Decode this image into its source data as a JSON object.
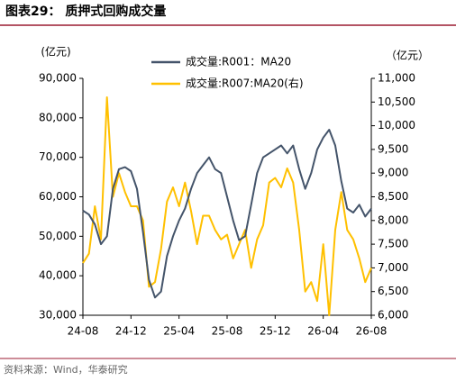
{
  "chart_data": {
    "type": "line",
    "title": "图表29： 质押式回购成交量",
    "source": "资料来源：Wind，华泰研究",
    "y_label": "(亿元)",
    "y2_label": "（亿元）",
    "categories": [
      "24-08",
      null,
      null,
      null,
      null,
      null,
      null,
      null,
      "24-12",
      null,
      null,
      null,
      null,
      null,
      null,
      null,
      "25-04",
      null,
      null,
      null,
      null,
      null,
      null,
      null,
      "25-08",
      null,
      null,
      null,
      null,
      null,
      null,
      null,
      "25-12",
      null,
      null,
      null,
      null,
      null,
      null,
      null,
      "26-04",
      null,
      null,
      null,
      null,
      null,
      null,
      null,
      "26-08"
    ],
    "series": [
      {
        "name": "成交量:R001：MA20",
        "color": "#44546a",
        "values": [
          56500,
          55500,
          53000,
          48000,
          50000,
          62000,
          67000,
          67500,
          66500,
          62000,
          51000,
          39000,
          34500,
          36000,
          45000,
          50000,
          54000,
          57000,
          62000,
          66000,
          68000,
          70000,
          67000,
          66000,
          60000,
          54000,
          49000,
          50000,
          58000,
          66000,
          70000,
          71000,
          72000,
          73000,
          71000,
          73000,
          67000,
          62000,
          66000,
          72000,
          75000,
          77000,
          73000,
          64000,
          57000,
          56000,
          58000,
          55000,
          57000
        ]
      },
      {
        "name": "成交量:R007:MA20(右)",
        "color": "#ffc000",
        "axis": "y2",
        "values": [
          7100,
          7300,
          8300,
          7600,
          10600,
          8500,
          9000,
          8600,
          8300,
          8300,
          8000,
          6600,
          6700,
          7400,
          8400,
          8700,
          8300,
          8800,
          8200,
          7500,
          8100,
          8100,
          7800,
          7600,
          7700,
          7200,
          7500,
          7800,
          7000,
          7600,
          7900,
          8800,
          8900,
          8700,
          9100,
          8800,
          7800,
          6500,
          6700,
          6300,
          7500,
          6000,
          7800,
          8600,
          7800,
          7600,
          7200,
          6700,
          7000
        ]
      }
    ],
    "ylim": [
      30000,
      90000
    ],
    "yticks": [
      {
        "value": 30000,
        "label": "30,000"
      },
      {
        "value": 40000,
        "label": "40,000"
      },
      {
        "value": 50000,
        "label": "50,000"
      },
      {
        "value": 60000,
        "label": "60,000"
      },
      {
        "value": 70000,
        "label": "70,000"
      },
      {
        "value": 80000,
        "label": "80,000"
      },
      {
        "value": 90000,
        "label": "90,000"
      }
    ],
    "y2lim": [
      6000,
      11000
    ],
    "y2ticks": [
      {
        "value": 6000,
        "label": "6,000"
      },
      {
        "value": 6500,
        "label": "6,500"
      },
      {
        "value": 7000,
        "label": "7,000"
      },
      {
        "value": 7500,
        "label": "7,500"
      },
      {
        "value": 8000,
        "label": "8,000"
      },
      {
        "value": 8500,
        "label": "8,500"
      },
      {
        "value": 9000,
        "label": "9,000"
      },
      {
        "value": 9500,
        "label": "9,500"
      },
      {
        "value": 10000,
        "label": "10,000"
      },
      {
        "value": 10500,
        "label": "10,500"
      },
      {
        "value": 11000,
        "label": "11,000"
      }
    ],
    "grid": false
  }
}
